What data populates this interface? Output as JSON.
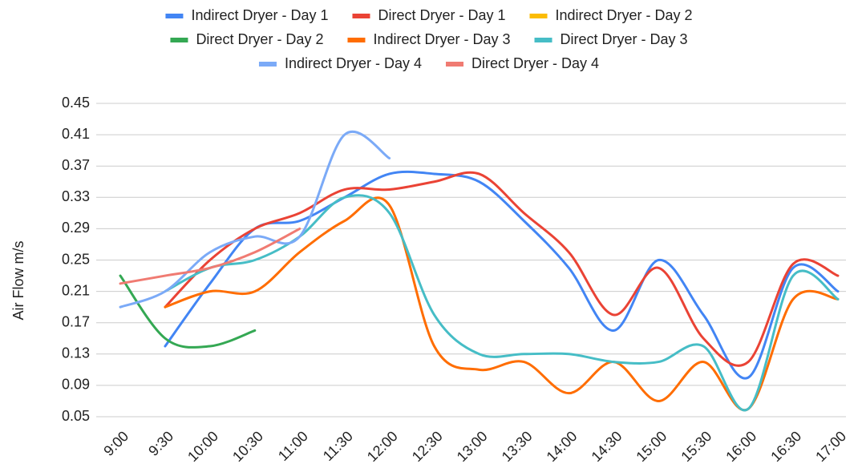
{
  "chart_data": {
    "type": "line",
    "y_label": "Air Flow m/s",
    "categories": [
      "9:00",
      "9:30",
      "10:00",
      "10:30",
      "11:00",
      "11:30",
      "12:00",
      "12:30",
      "13:00",
      "13:30",
      "14:00",
      "14:30",
      "15:00",
      "15:30",
      "16:00",
      "16:30",
      "17:00"
    ],
    "ylim": [
      0.05,
      0.45
    ],
    "yticks": [
      0.05,
      0.09,
      0.13,
      0.17,
      0.21,
      0.25,
      0.29,
      0.33,
      0.37,
      0.41,
      0.45
    ],
    "grid": true,
    "legend": "top",
    "smooth": true,
    "series": [
      {
        "name": "Indirect Dryer - Day 1",
        "color": "#4285f4",
        "values": [
          null,
          0.14,
          0.22,
          0.29,
          0.3,
          0.33,
          0.36,
          0.36,
          0.35,
          0.3,
          0.24,
          0.16,
          0.25,
          0.18,
          0.1,
          0.24,
          0.21
        ]
      },
      {
        "name": "Direct Dryer - Day 1",
        "color": "#ea4335",
        "values": [
          null,
          0.19,
          0.25,
          0.29,
          0.31,
          0.34,
          0.34,
          0.35,
          0.36,
          0.31,
          0.26,
          0.18,
          0.24,
          0.15,
          0.12,
          0.245,
          0.23
        ]
      },
      {
        "name": "Indirect Dryer - Day 2",
        "color": "#fbbc04",
        "values": [
          null,
          null,
          null,
          null,
          null,
          null,
          null,
          null,
          null,
          null,
          null,
          null,
          null,
          null,
          null,
          null,
          null
        ]
      },
      {
        "name": "Direct Dryer - Day 2",
        "color": "#34a853",
        "values": [
          0.23,
          0.15,
          0.14,
          0.16,
          null,
          null,
          null,
          null,
          null,
          null,
          null,
          null,
          null,
          null,
          null,
          null,
          null
        ]
      },
      {
        "name": "Indirect Dryer - Day 3",
        "color": "#ff6d01",
        "values": [
          null,
          0.19,
          0.21,
          0.21,
          0.26,
          0.3,
          0.32,
          0.14,
          0.11,
          0.12,
          0.08,
          0.12,
          0.07,
          0.12,
          0.06,
          0.2,
          0.2
        ]
      },
      {
        "name": "Direct Dryer - Day 3",
        "color": "#46bdc6",
        "values": [
          null,
          0.21,
          0.24,
          0.25,
          0.28,
          0.33,
          0.31,
          0.18,
          0.13,
          0.13,
          0.13,
          0.12,
          0.12,
          0.14,
          0.06,
          0.23,
          0.2
        ]
      },
      {
        "name": "Indirect Dryer - Day 4",
        "color": "#7baaf7",
        "values": [
          0.19,
          0.21,
          0.26,
          0.28,
          0.28,
          0.41,
          0.38,
          null,
          null,
          null,
          null,
          null,
          null,
          null,
          null,
          null,
          null
        ]
      },
      {
        "name": "Direct Dryer - Day 4",
        "color": "#f07b72",
        "values": [
          0.22,
          0.23,
          0.24,
          0.26,
          0.29,
          null,
          null,
          null,
          null,
          null,
          null,
          null,
          null,
          null,
          null,
          null,
          null
        ]
      }
    ]
  }
}
